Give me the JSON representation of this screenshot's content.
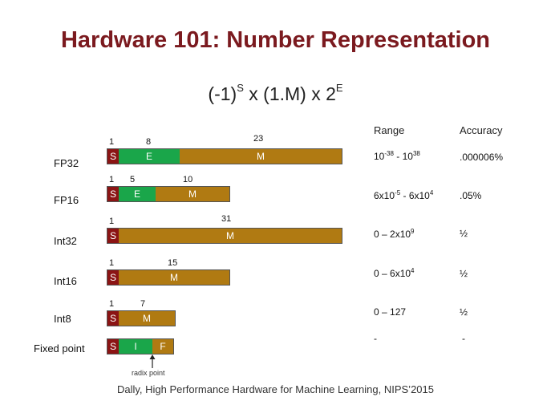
{
  "title": "Hardware 101: Number Representation",
  "formula": {
    "base": "(-1)",
    "exp1": "S",
    "mid": "x (1.M) x 2",
    "exp2": "E"
  },
  "headers": {
    "range": "Range",
    "accuracy": "Accuracy"
  },
  "formats": [
    {
      "name": "FP32",
      "bits": {
        "s": "1",
        "e": "8",
        "m": "23"
      },
      "range": {
        "a": "10",
        "a_exp": "-38",
        "sep": " - ",
        "b": "10",
        "b_exp": "38"
      },
      "accuracy": ".000006%"
    },
    {
      "name": "FP16",
      "bits": {
        "s": "1",
        "e": "5",
        "m": "10"
      },
      "range": {
        "a": "6x10",
        "a_exp": "-5",
        "sep": " - ",
        "b": "6x10",
        "b_exp": "4"
      },
      "accuracy": ".05%"
    },
    {
      "name": "Int32",
      "bits": {
        "s": "1",
        "m": "31"
      },
      "range": {
        "a": "0 – 2x10",
        "a_exp": "9"
      },
      "accuracy": "½"
    },
    {
      "name": "Int16",
      "bits": {
        "s": "1",
        "m": "15"
      },
      "range": {
        "a": "0 – 6x10",
        "a_exp": "4"
      },
      "accuracy": "½"
    },
    {
      "name": "Int8",
      "bits": {
        "s": "1",
        "m": "7"
      },
      "range": {
        "a": "0 – 127"
      },
      "accuracy": "½"
    },
    {
      "name": "Fixed point",
      "range": {
        "a": "-"
      },
      "accuracy": "-"
    }
  ],
  "seg_labels": {
    "s": "S",
    "e": "E",
    "m": "M",
    "i": "I",
    "f": "F"
  },
  "radix_label": "radix point",
  "footer": "Dally, High Performance Hardware for Machine Learning, NIPS’2015",
  "colors": {
    "sign": "#8b1414",
    "exponent": "#1aa64a",
    "mantissa": "#b07a12",
    "title": "#7b1a1f"
  }
}
